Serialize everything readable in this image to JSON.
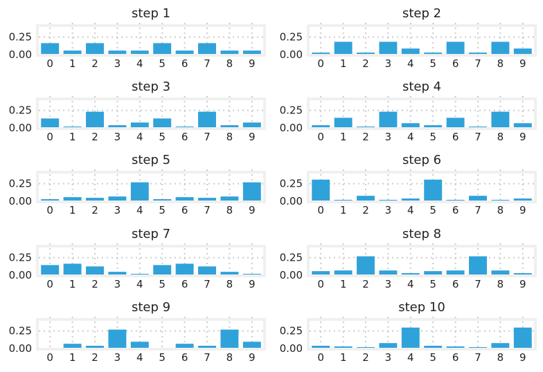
{
  "style": {
    "bar_color": "#30a2da",
    "axes_face": "#f0f0f0",
    "grid_color": "#cbcbcb",
    "background": "#ffffff"
  },
  "chart_data": [
    {
      "type": "bar",
      "title": "step 1",
      "categories": [
        "0",
        "1",
        "2",
        "3",
        "4",
        "5",
        "6",
        "7",
        "8",
        "9"
      ],
      "values": [
        0.16,
        0.05,
        0.16,
        0.05,
        0.05,
        0.16,
        0.05,
        0.16,
        0.05,
        0.05
      ],
      "ylim": [
        0,
        0.4
      ],
      "yticks": [
        "0.00",
        "0.25"
      ],
      "grid": true
    },
    {
      "type": "bar",
      "title": "step 2",
      "categories": [
        "0",
        "1",
        "2",
        "3",
        "4",
        "5",
        "6",
        "7",
        "8",
        "9"
      ],
      "values": [
        0.02,
        0.18,
        0.02,
        0.18,
        0.08,
        0.02,
        0.18,
        0.02,
        0.18,
        0.08
      ],
      "ylim": [
        0,
        0.4
      ],
      "yticks": [
        "0.00",
        "0.25"
      ],
      "grid": true
    },
    {
      "type": "bar",
      "title": "step 3",
      "categories": [
        "0",
        "1",
        "2",
        "3",
        "4",
        "5",
        "6",
        "7",
        "8",
        "9"
      ],
      "values": [
        0.13,
        0.01,
        0.23,
        0.03,
        0.07,
        0.13,
        0.01,
        0.23,
        0.03,
        0.07
      ],
      "ylim": [
        0,
        0.4
      ],
      "yticks": [
        "0.00",
        "0.25"
      ],
      "grid": true
    },
    {
      "type": "bar",
      "title": "step 4",
      "categories": [
        "0",
        "1",
        "2",
        "3",
        "4",
        "5",
        "6",
        "7",
        "8",
        "9"
      ],
      "values": [
        0.03,
        0.14,
        0.01,
        0.23,
        0.06,
        0.03,
        0.14,
        0.01,
        0.23,
        0.06
      ],
      "ylim": [
        0,
        0.4
      ],
      "yticks": [
        "0.00",
        "0.25"
      ],
      "grid": true
    },
    {
      "type": "bar",
      "title": "step 5",
      "categories": [
        "0",
        "1",
        "2",
        "3",
        "4",
        "5",
        "6",
        "7",
        "8",
        "9"
      ],
      "values": [
        0.02,
        0.05,
        0.04,
        0.06,
        0.27,
        0.02,
        0.05,
        0.04,
        0.06,
        0.27
      ],
      "ylim": [
        0,
        0.4
      ],
      "yticks": [
        "0.00",
        "0.25"
      ],
      "grid": true
    },
    {
      "type": "bar",
      "title": "step 6",
      "categories": [
        "0",
        "1",
        "2",
        "3",
        "4",
        "5",
        "6",
        "7",
        "8",
        "9"
      ],
      "values": [
        0.31,
        0.01,
        0.07,
        0.01,
        0.03,
        0.31,
        0.01,
        0.07,
        0.01,
        0.03
      ],
      "ylim": [
        0,
        0.4
      ],
      "yticks": [
        "0.00",
        "0.25"
      ],
      "grid": true
    },
    {
      "type": "bar",
      "title": "step 7",
      "categories": [
        "0",
        "1",
        "2",
        "3",
        "4",
        "5",
        "6",
        "7",
        "8",
        "9"
      ],
      "values": [
        0.14,
        0.16,
        0.12,
        0.04,
        0.01,
        0.14,
        0.16,
        0.12,
        0.04,
        0.01
      ],
      "ylim": [
        0,
        0.4
      ],
      "yticks": [
        "0.00",
        "0.25"
      ],
      "grid": true
    },
    {
      "type": "bar",
      "title": "step 8",
      "categories": [
        "0",
        "1",
        "2",
        "3",
        "4",
        "5",
        "6",
        "7",
        "8",
        "9"
      ],
      "values": [
        0.05,
        0.06,
        0.27,
        0.06,
        0.02,
        0.05,
        0.06,
        0.27,
        0.06,
        0.02
      ],
      "ylim": [
        0,
        0.4
      ],
      "yticks": [
        "0.00",
        "0.25"
      ],
      "grid": true
    },
    {
      "type": "bar",
      "title": "step 9",
      "categories": [
        "0",
        "1",
        "2",
        "3",
        "4",
        "5",
        "6",
        "7",
        "8",
        "9"
      ],
      "values": [
        0.0,
        0.06,
        0.03,
        0.27,
        0.09,
        0.0,
        0.06,
        0.03,
        0.27,
        0.09
      ],
      "ylim": [
        0,
        0.4
      ],
      "yticks": [
        "0.00",
        "0.25"
      ],
      "grid": true
    },
    {
      "type": "bar",
      "title": "step 10",
      "categories": [
        "0",
        "1",
        "2",
        "3",
        "4",
        "5",
        "6",
        "7",
        "8",
        "9"
      ],
      "values": [
        0.03,
        0.02,
        0.01,
        0.07,
        0.3,
        0.03,
        0.02,
        0.01,
        0.07,
        0.3
      ],
      "ylim": [
        0,
        0.4
      ],
      "yticks": [
        "0.00",
        "0.25"
      ],
      "grid": true
    }
  ]
}
